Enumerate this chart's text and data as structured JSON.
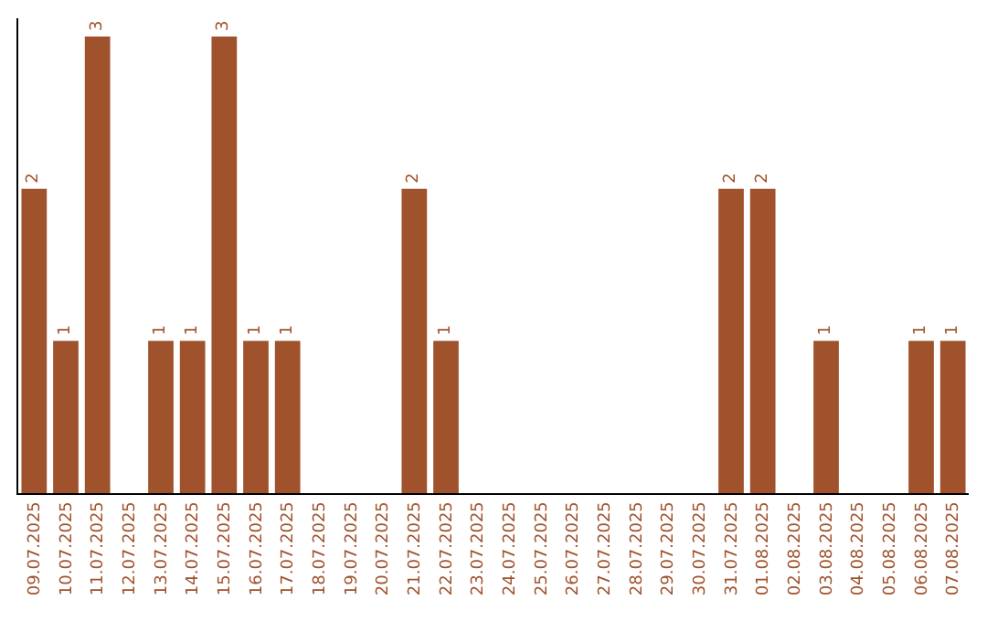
{
  "chart_data": {
    "type": "bar",
    "categories": [
      "09.07.2025",
      "10.07.2025",
      "11.07.2025",
      "12.07.2025",
      "13.07.2025",
      "14.07.2025",
      "15.07.2025",
      "16.07.2025",
      "17.07.2025",
      "18.07.2025",
      "19.07.2025",
      "20.07.2025",
      "21.07.2025",
      "22.07.2025",
      "23.07.2025",
      "24.07.2025",
      "25.07.2025",
      "26.07.2025",
      "27.07.2025",
      "28.07.2025",
      "29.07.2025",
      "30.07.2025",
      "31.07.2025",
      "01.08.2025",
      "02.08.2025",
      "03.08.2025",
      "04.08.2025",
      "05.08.2025",
      "06.08.2025",
      "07.08.2025"
    ],
    "values": [
      2,
      1,
      3,
      0,
      1,
      1,
      3,
      1,
      1,
      0,
      0,
      0,
      2,
      1,
      0,
      0,
      0,
      0,
      0,
      0,
      0,
      0,
      2,
      2,
      0,
      1,
      0,
      0,
      1,
      1
    ],
    "value_labels": [
      "2",
      "1",
      "3",
      null,
      "1",
      "1",
      "3",
      "1",
      "1",
      null,
      null,
      null,
      "2",
      "1",
      null,
      null,
      null,
      null,
      null,
      null,
      null,
      null,
      "2",
      "2",
      null,
      "1",
      null,
      null,
      "1",
      "1"
    ],
    "color": "#a0522d",
    "ylim": [
      0,
      3.12
    ],
    "tick_labels": "x"
  }
}
